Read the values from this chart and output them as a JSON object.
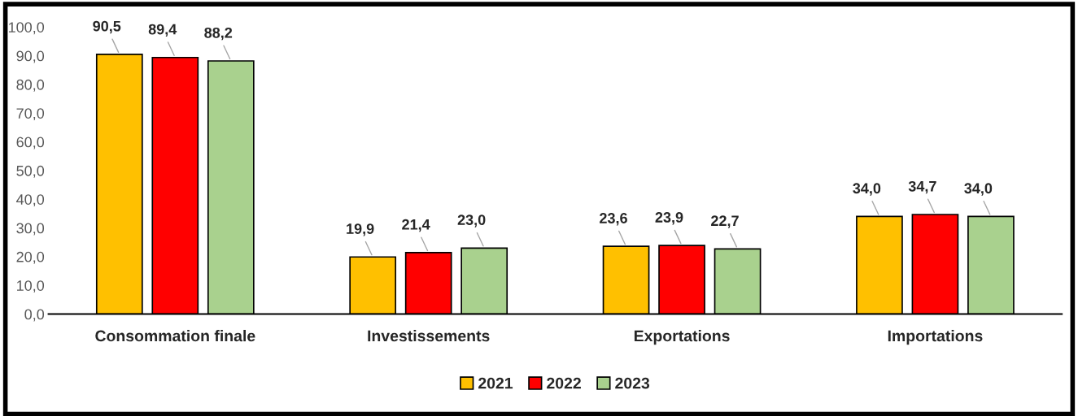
{
  "chart_data": {
    "type": "bar",
    "categories": [
      "Consommation finale",
      "Investissements",
      "Exportations",
      "Importations"
    ],
    "series": [
      {
        "name": "2021",
        "color": "#ffc000",
        "values": [
          90.5,
          19.9,
          23.6,
          34.0
        ],
        "value_labels": [
          "90,5",
          "19,9",
          "23,6",
          "34,0"
        ]
      },
      {
        "name": "2022",
        "color": "#ff0000",
        "values": [
          89.4,
          21.4,
          23.9,
          34.7
        ],
        "value_labels": [
          "89,4",
          "21,4",
          "23,9",
          "34,7"
        ]
      },
      {
        "name": "2023",
        "color": "#a9d18e",
        "values": [
          88.2,
          23.0,
          22.7,
          34.0
        ],
        "value_labels": [
          "88,2",
          "23,0",
          "22,7",
          "34,0"
        ]
      }
    ],
    "ylim": [
      0,
      100
    ],
    "yticks": [
      {
        "value": 0,
        "label": "0,0"
      },
      {
        "value": 10,
        "label": "10,0"
      },
      {
        "value": 20,
        "label": "20,0"
      },
      {
        "value": 30,
        "label": "30,0"
      },
      {
        "value": 40,
        "label": "40,0"
      },
      {
        "value": 50,
        "label": "50,0"
      },
      {
        "value": 60,
        "label": "60,0"
      },
      {
        "value": 70,
        "label": "70,0"
      },
      {
        "value": 80,
        "label": "80,0"
      },
      {
        "value": 90,
        "label": "90,0"
      },
      {
        "value": 100,
        "label": "100,0"
      }
    ],
    "grid": false,
    "legend": "bottom"
  }
}
